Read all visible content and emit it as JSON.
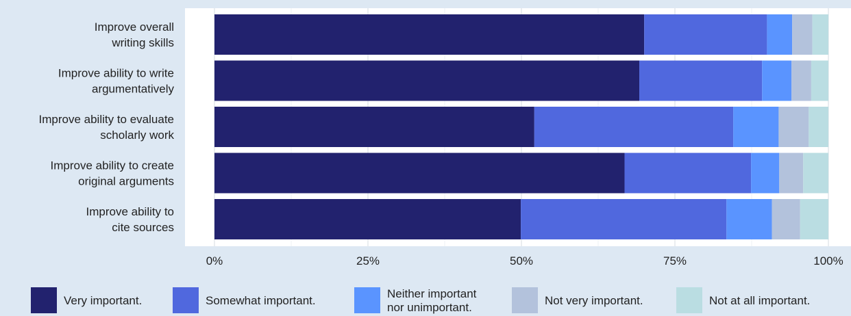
{
  "chart_data": {
    "type": "bar",
    "orientation": "horizontal",
    "stacked": "percent",
    "categories": [
      [
        "Improve overall",
        "writing skills"
      ],
      [
        "Improve ability to write",
        "argumentatively"
      ],
      [
        "Improve ability to evaluate",
        "scholarly work"
      ],
      [
        "Improve ability to create",
        "original arguments"
      ],
      [
        "Improve ability to",
        "cite sources"
      ]
    ],
    "series": [
      {
        "name": "Very important.",
        "color": "#22226e",
        "values": [
          70.0,
          69.2,
          52.1,
          66.8,
          49.9
        ]
      },
      {
        "name": "Somewhat important.",
        "color": "#5068de",
        "values": [
          20.0,
          20.0,
          32.4,
          20.6,
          33.5
        ]
      },
      {
        "name": "Neither important nor unimportant.",
        "label_lines": [
          "Neither important",
          "nor unimportant."
        ],
        "color": "#5a94ff",
        "values": [
          4.1,
          4.8,
          7.4,
          4.6,
          7.4
        ]
      },
      {
        "name": "Not very important.",
        "color": "#b3c2dc",
        "values": [
          3.3,
          3.2,
          4.9,
          3.9,
          4.6
        ]
      },
      {
        "name": "Not at all important.",
        "color": "#badde2",
        "values": [
          2.6,
          2.8,
          3.2,
          4.1,
          4.6
        ]
      }
    ],
    "xlim": [
      0,
      100
    ],
    "xticks": [
      0,
      25,
      50,
      75,
      100
    ],
    "xtick_labels": [
      "0%",
      "25%",
      "50%",
      "75%",
      "100%"
    ],
    "grid": true,
    "legend_position": "bottom",
    "title": "",
    "xlabel": "",
    "ylabel": ""
  }
}
